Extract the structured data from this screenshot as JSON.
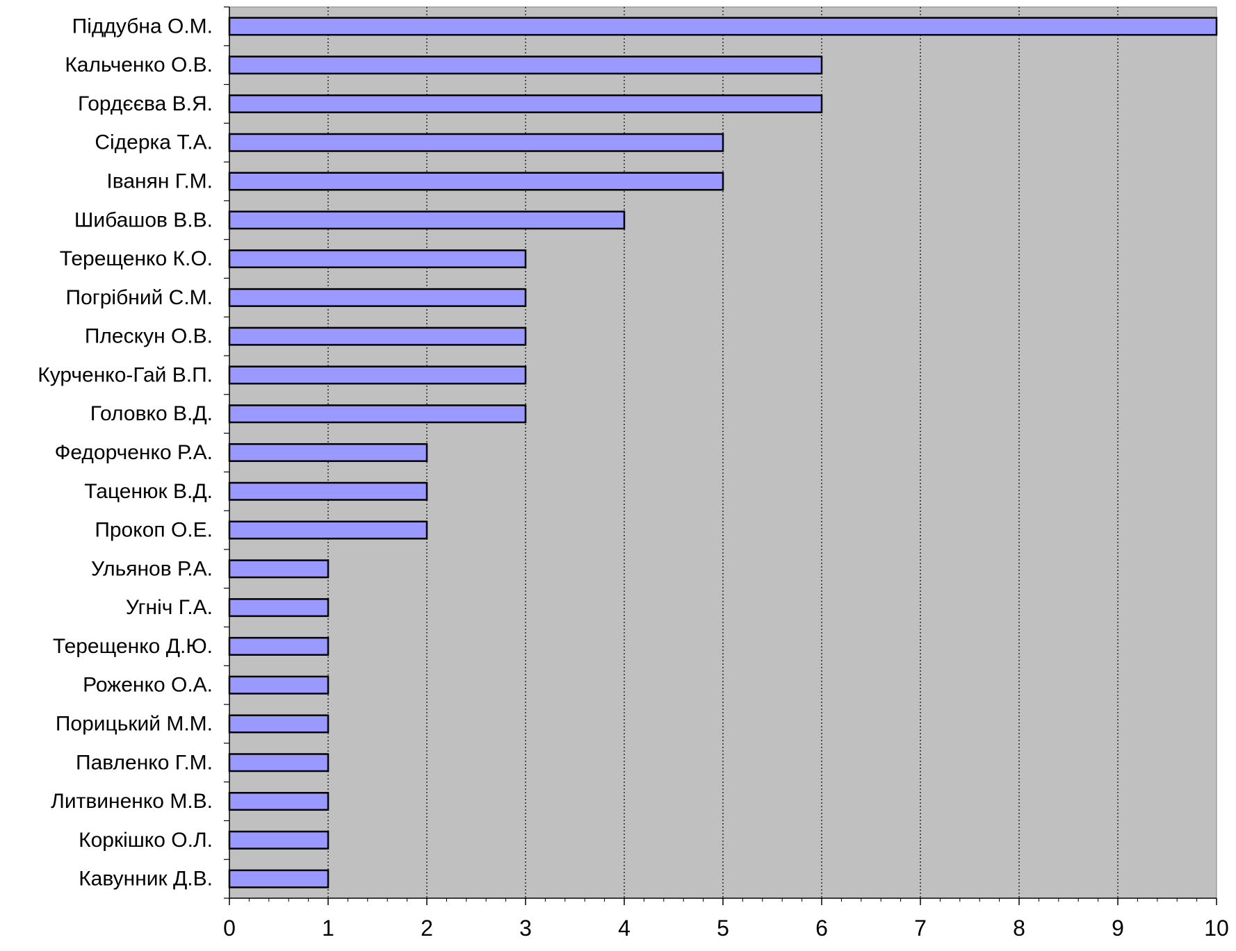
{
  "colors": {
    "plot_background": "#c0c0c0",
    "bar_fill": "#9999ff",
    "bar_stroke": "#000000",
    "gridline": "#000000",
    "page_background": "#ffffff"
  },
  "chart_data": {
    "type": "bar",
    "orientation": "horizontal",
    "title": "",
    "xlabel": "",
    "ylabel": "",
    "categories": [
      "Піддубна О.М.",
      "Кальченко  О.В.",
      "Гордєєва В.Я.",
      "Сідерка Т.А.",
      "Іванян Г.М.",
      "Шибашов В.В.",
      "Терещенко К.О.",
      "Погрібний С.М.",
      "Плескун О.В.",
      "Курченко-Гай В.П.",
      "Головко В.Д.",
      "Федорченко Р.А.",
      "Таценюк В.Д.",
      "Прокоп О.Е.",
      "Ульянов Р.А.",
      "Угніч Г.А.",
      "Терещенко Д.Ю.",
      "Роженко О.А.",
      "Порицький  М.М.",
      "Павленко Г.М.",
      "Литвиненко М.В.",
      "Коркішко О.Л.",
      "Кавунник Д.В."
    ],
    "values": [
      10,
      6,
      6,
      5,
      5,
      4,
      3,
      3,
      3,
      3,
      3,
      2,
      2,
      2,
      1,
      1,
      1,
      1,
      1,
      1,
      1,
      1,
      1
    ],
    "xlim": [
      0,
      10
    ],
    "x_ticks": [
      "0",
      "1",
      "2",
      "3",
      "4",
      "5",
      "6",
      "7",
      "8",
      "9",
      "10"
    ],
    "grid": "vertical dotted",
    "legend": "none"
  }
}
